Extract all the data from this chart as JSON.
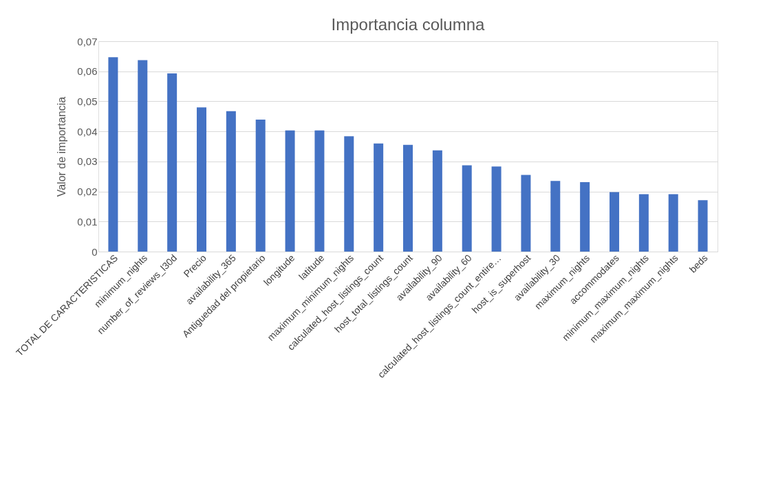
{
  "chart_data": {
    "type": "bar",
    "title": "Importancia columna",
    "ylabel": "Valor de importancia",
    "categories": [
      "TOTAL DE CARACTERISTICAS",
      "minimum_nights",
      "number_of_reviews_l30d",
      "Precio",
      "availability_365",
      "Antiguedad del propietario",
      "longitude",
      "latitude",
      "maximum_minimum_nights",
      "calculated_host_listings_count",
      "host_total_listings_count",
      "availability_90",
      "availability_60",
      "calculated_host_listings_count_entire…",
      "host_is_superhost",
      "availability_30",
      "maximum_nights",
      "accommodates",
      "minimum_maximum_nights",
      "maximum_maximum_nights",
      "beds"
    ],
    "values": [
      0.0647,
      0.0637,
      0.0593,
      0.048,
      0.0467,
      0.0439,
      0.0403,
      0.0403,
      0.0384,
      0.036,
      0.0355,
      0.0337,
      0.0287,
      0.0283,
      0.0255,
      0.0235,
      0.0231,
      0.0198,
      0.0191,
      0.0191,
      0.0171
    ],
    "color": "#4472c4",
    "ylim": [
      0,
      0.07
    ],
    "yticks": [
      {
        "value": 0,
        "label": "0"
      },
      {
        "value": 0.01,
        "label": "0,01"
      },
      {
        "value": 0.02,
        "label": "0,02"
      },
      {
        "value": 0.03,
        "label": "0,03"
      },
      {
        "value": 0.04,
        "label": "0,04"
      },
      {
        "value": 0.05,
        "label": "0,05"
      },
      {
        "value": 0.06,
        "label": "0,06"
      },
      {
        "value": 0.07,
        "label": "0,07"
      }
    ],
    "grid": "y"
  }
}
